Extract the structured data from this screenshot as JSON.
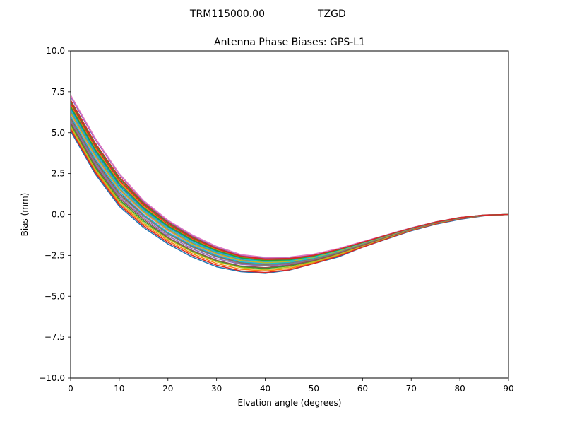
{
  "figure": {
    "suptitle_antenna": "TRM115000.00",
    "suptitle_radome": "TZGD"
  },
  "chart_data": {
    "type": "line",
    "title": "Antenna Phase Biases: GPS-L1",
    "xlabel": "Elvation angle (degrees)",
    "ylabel": "Bias (mm)",
    "xlim": [
      0,
      90
    ],
    "ylim": [
      -10,
      10
    ],
    "grid": false,
    "x": [
      0,
      5,
      10,
      15,
      20,
      25,
      30,
      35,
      40,
      45,
      50,
      55,
      60,
      65,
      70,
      75,
      80,
      85,
      90
    ],
    "xticks": [
      "0",
      "10",
      "20",
      "30",
      "40",
      "50",
      "60",
      "70",
      "80",
      "90"
    ],
    "yticks": [
      "10.0",
      "7.5",
      "5.0",
      "2.5",
      "0.0",
      "−2.5",
      "−5.0",
      "−7.5",
      "−10.0"
    ],
    "series": [
      {
        "color": "#1f77b4",
        "values": [
          5.1,
          2.5,
          0.5,
          -0.8,
          -1.8,
          -2.6,
          -3.2,
          -3.5,
          -3.6,
          -3.4,
          -3.0,
          -2.6,
          -2.0,
          -1.5,
          -1.0,
          -0.6,
          -0.3,
          -0.08,
          0.0
        ]
      },
      {
        "color": "#ff7f0e",
        "values": [
          5.3,
          2.7,
          0.7,
          -0.6,
          -1.6,
          -2.4,
          -3.0,
          -3.35,
          -3.45,
          -3.3,
          -2.95,
          -2.5,
          -1.95,
          -1.45,
          -0.95,
          -0.55,
          -0.25,
          -0.06,
          0.0
        ]
      },
      {
        "color": "#2ca02c",
        "values": [
          5.5,
          2.9,
          0.9,
          -0.4,
          -1.45,
          -2.25,
          -2.85,
          -3.2,
          -3.3,
          -3.15,
          -2.85,
          -2.4,
          -1.9,
          -1.4,
          -0.93,
          -0.53,
          -0.23,
          -0.05,
          0.0
        ]
      },
      {
        "color": "#d62728",
        "values": [
          5.2,
          2.6,
          0.6,
          -0.7,
          -1.7,
          -2.5,
          -3.1,
          -3.45,
          -3.55,
          -3.38,
          -3.0,
          -2.55,
          -2.0,
          -1.48,
          -0.98,
          -0.58,
          -0.27,
          -0.07,
          0.0
        ]
      },
      {
        "color": "#9467bd",
        "values": [
          5.7,
          3.1,
          1.1,
          -0.2,
          -1.3,
          -2.1,
          -2.7,
          -3.05,
          -3.15,
          -3.05,
          -2.78,
          -2.35,
          -1.85,
          -1.36,
          -0.9,
          -0.5,
          -0.22,
          -0.05,
          0.0
        ]
      },
      {
        "color": "#8c564b",
        "values": [
          5.9,
          3.3,
          1.3,
          -0.05,
          -1.15,
          -1.95,
          -2.55,
          -2.95,
          -3.05,
          -2.95,
          -2.7,
          -2.3,
          -1.8,
          -1.33,
          -0.88,
          -0.5,
          -0.21,
          -0.05,
          0.0
        ]
      },
      {
        "color": "#e377c2",
        "values": [
          6.1,
          3.5,
          1.5,
          0.1,
          -1.0,
          -1.85,
          -2.45,
          -2.85,
          -2.98,
          -2.9,
          -2.65,
          -2.26,
          -1.78,
          -1.31,
          -0.87,
          -0.49,
          -0.21,
          -0.04,
          0.0
        ]
      },
      {
        "color": "#7f7f7f",
        "values": [
          6.3,
          3.7,
          1.6,
          0.2,
          -0.9,
          -1.75,
          -2.35,
          -2.78,
          -2.92,
          -2.85,
          -2.6,
          -2.22,
          -1.75,
          -1.29,
          -0.86,
          -0.48,
          -0.2,
          -0.04,
          0.0
        ]
      },
      {
        "color": "#bcbd22",
        "values": [
          5.4,
          2.8,
          0.8,
          -0.5,
          -1.5,
          -2.3,
          -2.9,
          -3.25,
          -3.38,
          -3.22,
          -2.9,
          -2.45,
          -1.92,
          -1.42,
          -0.94,
          -0.54,
          -0.24,
          -0.06,
          0.0
        ]
      },
      {
        "color": "#17becf",
        "values": [
          6.0,
          3.4,
          1.4,
          0.0,
          -1.1,
          -1.9,
          -2.5,
          -2.9,
          -3.02,
          -2.92,
          -2.66,
          -2.27,
          -1.79,
          -1.32,
          -0.87,
          -0.49,
          -0.21,
          -0.05,
          0.0
        ]
      },
      {
        "color": "#1f77b4",
        "values": [
          6.5,
          3.9,
          1.8,
          0.35,
          -0.75,
          -1.6,
          -2.25,
          -2.68,
          -2.85,
          -2.8,
          -2.56,
          -2.19,
          -1.73,
          -1.28,
          -0.85,
          -0.48,
          -0.2,
          -0.04,
          0.0
        ]
      },
      {
        "color": "#ff7f0e",
        "values": [
          6.7,
          4.1,
          2.0,
          0.5,
          -0.65,
          -1.5,
          -2.15,
          -2.6,
          -2.78,
          -2.75,
          -2.52,
          -2.16,
          -1.71,
          -1.27,
          -0.84,
          -0.47,
          -0.2,
          -0.04,
          0.0
        ]
      },
      {
        "color": "#2ca02c",
        "values": [
          6.9,
          4.3,
          2.2,
          0.65,
          -0.5,
          -1.4,
          -2.05,
          -2.52,
          -2.72,
          -2.7,
          -2.48,
          -2.13,
          -1.69,
          -1.26,
          -0.84,
          -0.47,
          -0.19,
          -0.04,
          0.0
        ]
      },
      {
        "color": "#d62728",
        "values": [
          7.0,
          4.4,
          2.3,
          0.72,
          -0.45,
          -1.35,
          -2.02,
          -2.5,
          -2.7,
          -2.68,
          -2.47,
          -2.12,
          -1.68,
          -1.25,
          -0.83,
          -0.46,
          -0.19,
          -0.03,
          0.0
        ]
      },
      {
        "color": "#9467bd",
        "values": [
          7.2,
          4.6,
          2.45,
          0.8,
          -0.4,
          -1.3,
          -2.0,
          -2.48,
          -2.65,
          -2.62,
          -2.43,
          -2.1,
          -1.67,
          -1.24,
          -0.82,
          -0.46,
          -0.19,
          -0.03,
          0.0
        ]
      },
      {
        "color": "#8c564b",
        "values": [
          5.6,
          3.0,
          1.0,
          -0.3,
          -1.4,
          -2.2,
          -2.8,
          -3.15,
          -3.25,
          -3.1,
          -2.82,
          -2.38,
          -1.88,
          -1.38,
          -0.92,
          -0.52,
          -0.23,
          -0.05,
          0.0
        ]
      },
      {
        "color": "#e377c2",
        "values": [
          7.3,
          4.7,
          2.5,
          0.85,
          -0.35,
          -1.25,
          -1.95,
          -2.45,
          -2.62,
          -2.6,
          -2.42,
          -2.09,
          -1.66,
          -1.24,
          -0.82,
          -0.46,
          -0.19,
          -0.03,
          0.0
        ]
      },
      {
        "color": "#7f7f7f",
        "values": [
          5.8,
          3.2,
          1.2,
          -0.1,
          -1.2,
          -2.0,
          -2.6,
          -3.0,
          -3.1,
          -3.0,
          -2.74,
          -2.32,
          -1.82,
          -1.34,
          -0.89,
          -0.5,
          -0.22,
          -0.05,
          0.0
        ]
      },
      {
        "color": "#bcbd22",
        "values": [
          6.2,
          3.6,
          1.55,
          0.15,
          -0.95,
          -1.8,
          -2.4,
          -2.82,
          -2.95,
          -2.87,
          -2.62,
          -2.24,
          -1.76,
          -1.3,
          -0.86,
          -0.48,
          -0.2,
          -0.04,
          0.0
        ]
      },
      {
        "color": "#17becf",
        "values": [
          6.4,
          3.8,
          1.7,
          0.28,
          -0.82,
          -1.68,
          -2.3,
          -2.72,
          -2.88,
          -2.82,
          -2.58,
          -2.2,
          -1.74,
          -1.28,
          -0.85,
          -0.48,
          -0.2,
          -0.04,
          0.0
        ]
      },
      {
        "color": "#2ca02c",
        "values": [
          6.6,
          4.0,
          1.9,
          0.42,
          -0.7,
          -1.55,
          -2.2,
          -2.64,
          -2.82,
          -2.77,
          -2.54,
          -2.17,
          -1.72,
          -1.27,
          -0.84,
          -0.47,
          -0.2,
          -0.04,
          0.0
        ]
      },
      {
        "color": "#d62728",
        "values": [
          6.8,
          4.2,
          2.1,
          0.58,
          -0.58,
          -1.45,
          -2.1,
          -2.56,
          -2.75,
          -2.72,
          -2.5,
          -2.14,
          -1.7,
          -1.26,
          -0.84,
          -0.47,
          -0.19,
          -0.04,
          0.0
        ]
      }
    ]
  }
}
